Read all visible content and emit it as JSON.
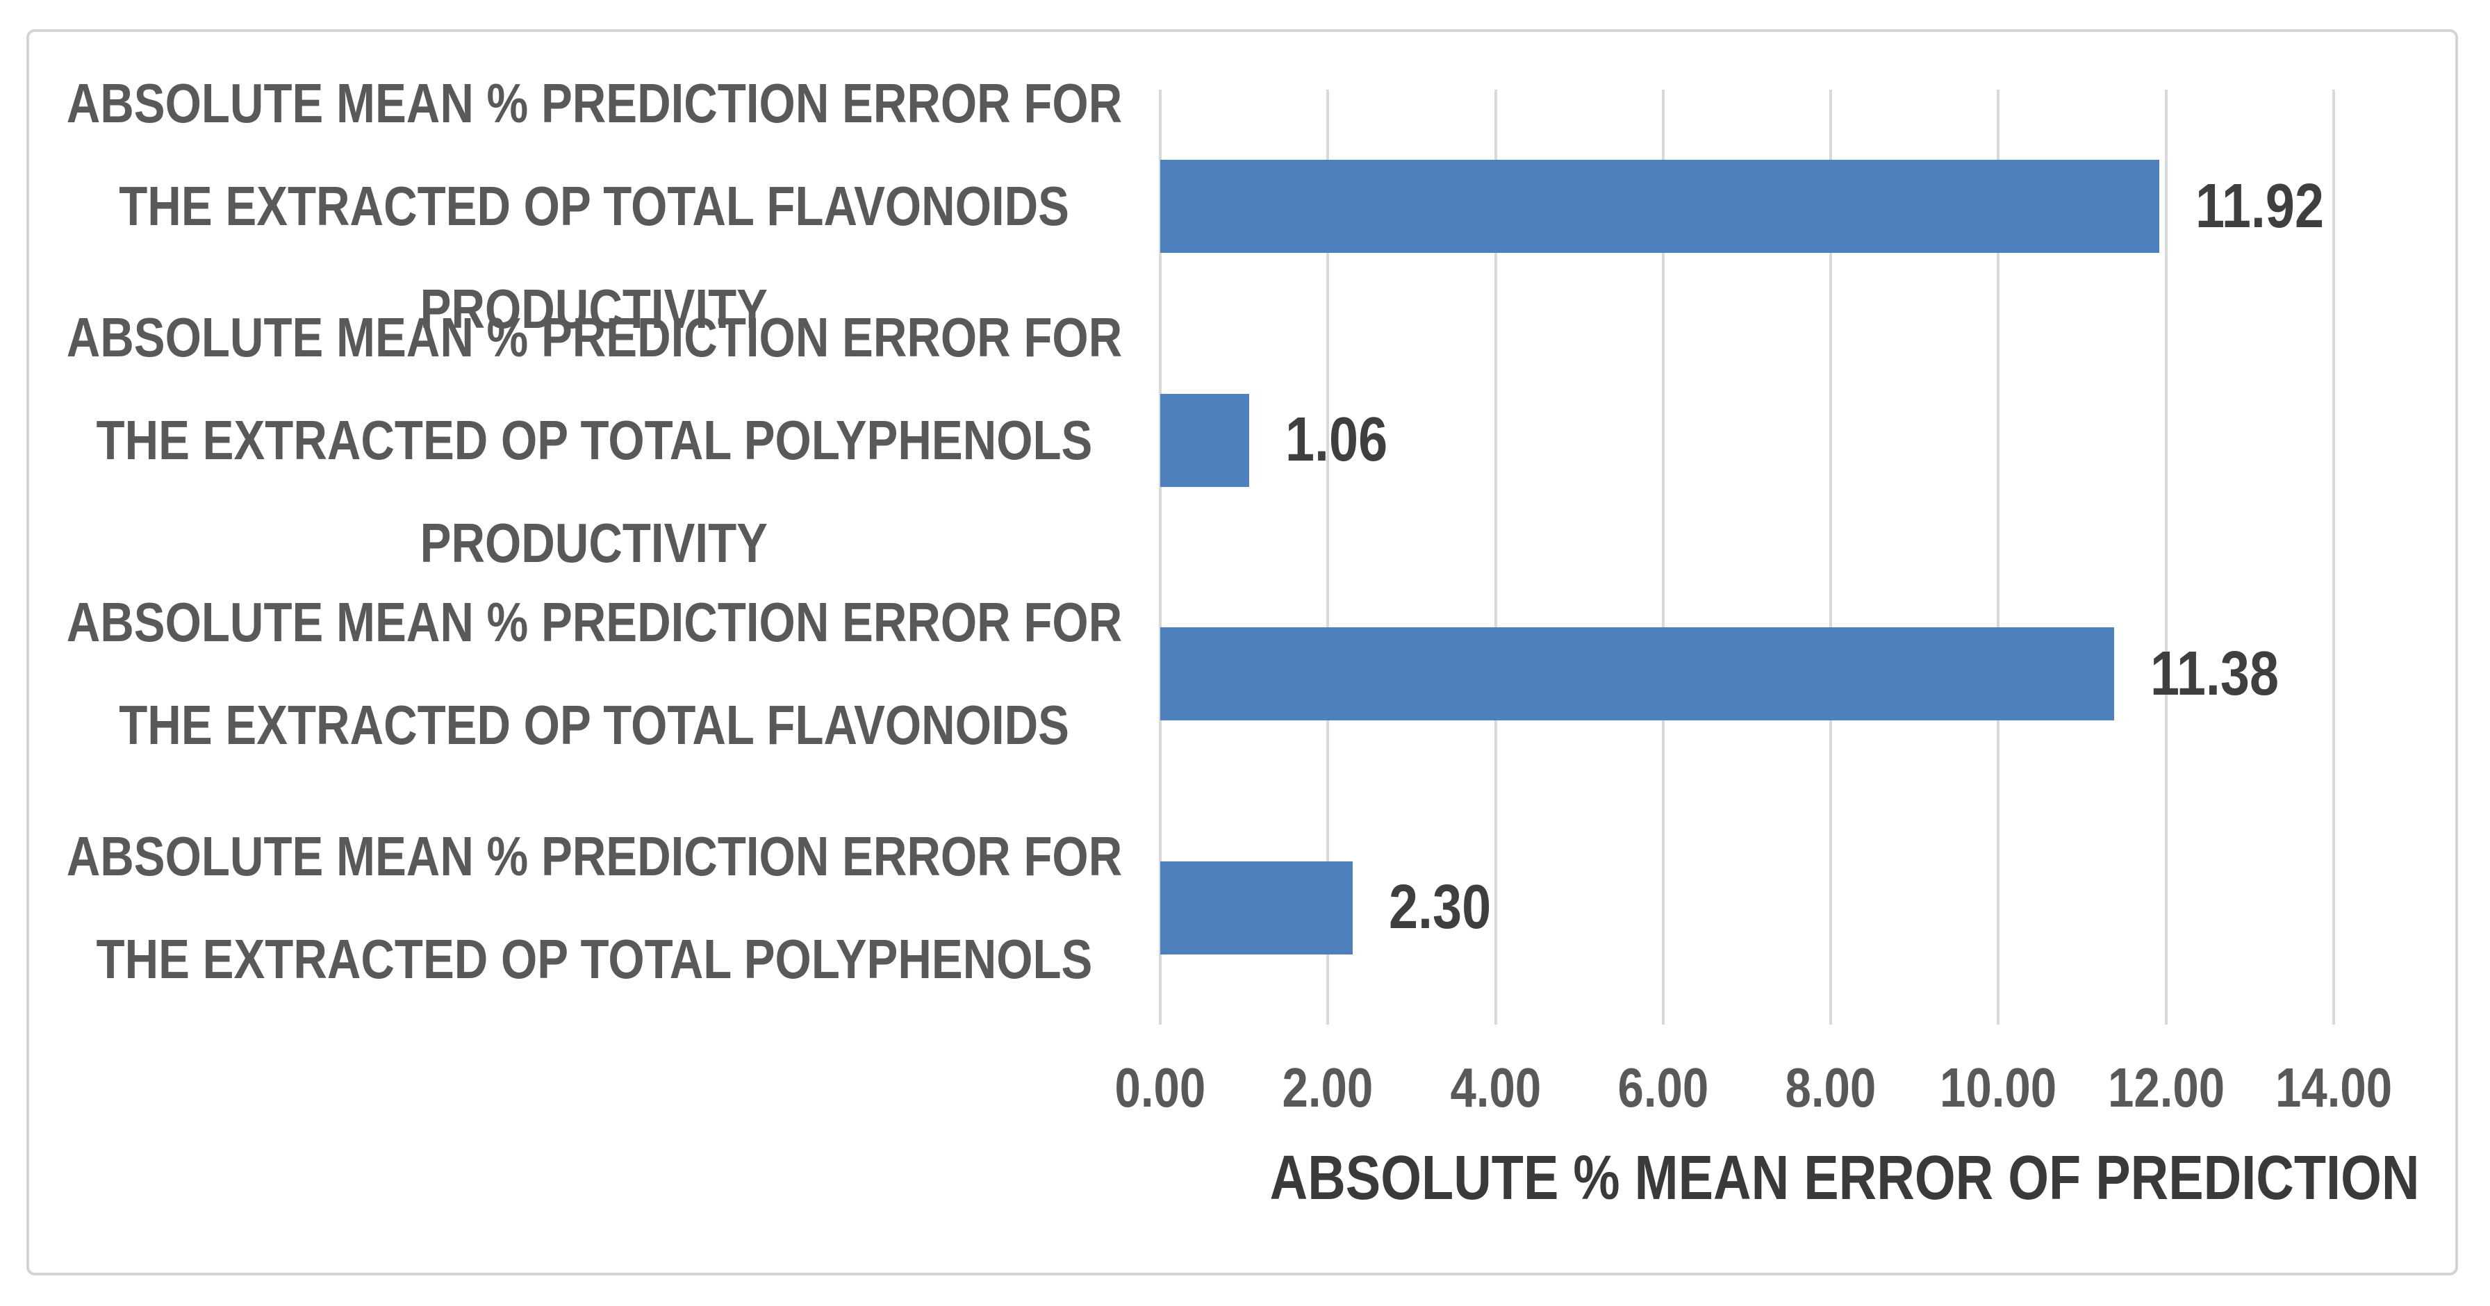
{
  "chart_data": {
    "type": "bar",
    "orientation": "horizontal",
    "title": "",
    "xlabel": "ABSOLUTE % MEAN ERROR OF PREDICTION",
    "ylabel": "",
    "xlim": [
      0,
      14
    ],
    "x_tick_step": 2,
    "x_tick_labels": [
      "0.00",
      "2.00",
      "4.00",
      "6.00",
      "8.00",
      "10.00",
      "12.00",
      "14.00"
    ],
    "grid": "vertical-only",
    "legend": false,
    "rows": [
      {
        "lines": [
          "ABSOLUTE MEAN % PREDICTION  ERROR  FOR",
          "THE EXTRACTED OP TOTAL FLAVONOIDS",
          "PRODUCTIVITY"
        ],
        "category": "ABSOLUTE MEAN % PREDICTION ERROR FOR THE EXTRACTED OP TOTAL FLAVONOIDS PRODUCTIVITY",
        "value": 11.92,
        "data_label": "11.92"
      },
      {
        "lines": [
          "ABSOLUTE MEAN % PREDICTION  ERROR  FOR",
          "THE EXTRACTED OP TOTAL POLYPHENOLS",
          "PRODUCTIVITY"
        ],
        "category": "ABSOLUTE MEAN % PREDICTION ERROR FOR THE EXTRACTED OP TOTAL POLYPHENOLS PRODUCTIVITY",
        "value": 1.06,
        "data_label": "1.06"
      },
      {
        "lines": [
          "ABSOLUTE MEAN % PREDICTION  ERROR  FOR",
          "THE EXTRACTED OP TOTAL FLAVONOIDS"
        ],
        "category": "ABSOLUTE MEAN % PREDICTION ERROR FOR THE EXTRACTED OP TOTAL FLAVONOIDS",
        "value": 11.38,
        "data_label": "11.38"
      },
      {
        "lines": [
          "ABSOLUTE MEAN % PREDICTION  ERROR  FOR",
          "THE EXTRACTED OP TOTAL POLYPHENOLS"
        ],
        "category": "ABSOLUTE MEAN % PREDICTION ERROR FOR THE EXTRACTED OP TOTAL POLYPHENOLS",
        "value": 2.3,
        "data_label": "2.30"
      }
    ]
  },
  "colors": {
    "bar_fill": "#4E80BD",
    "gridline": "#D9D9D9",
    "category_text": "#595959",
    "tick_text": "#595959",
    "data_label_text": "#3F3F3F",
    "axis_title_text": "#3A3A3A",
    "frame_border": "#D4D4D4",
    "background": "#FFFFFF"
  }
}
